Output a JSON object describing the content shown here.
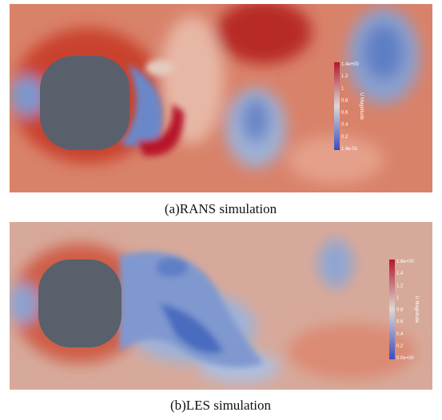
{
  "figures": [
    {
      "caption": "(a)RANS simulation",
      "colorbar": {
        "title": "U Magnitude",
        "ticks": [
          "1.4e+00",
          "1.2",
          "1",
          "0.8",
          "0.6",
          "0.4",
          "0.2",
          "1.4e-01"
        ]
      }
    },
    {
      "caption": "(b)LES simulation",
      "colorbar": {
        "title": "U Magnitude",
        "ticks": [
          "1.6e+00",
          "1.4",
          "1.2",
          "1",
          "0.8",
          "0.6",
          "0.4",
          "0.2",
          "0.0e+00"
        ]
      }
    }
  ]
}
